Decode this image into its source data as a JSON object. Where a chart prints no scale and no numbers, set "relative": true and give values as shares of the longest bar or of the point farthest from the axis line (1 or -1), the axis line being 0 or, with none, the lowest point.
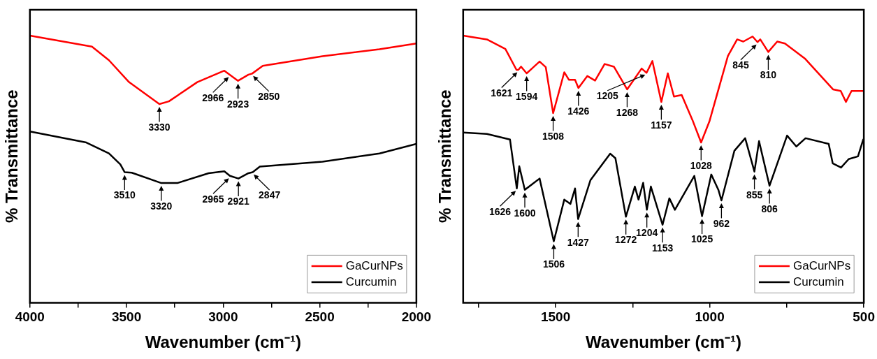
{
  "chart_data": [
    {
      "type": "line",
      "xlabel": "Wavenumber (cm⁻¹)",
      "ylabel": "% Transmittance",
      "relative": true,
      "xlim": [
        4000,
        2000
      ],
      "xticks": [
        4000,
        {
          "value": 3750,
          "label": null
        },
        3500,
        {
          "value": 3250,
          "label": null
        },
        3000,
        {
          "value": 2750,
          "label": null
        },
        2500,
        {
          "value": 2250,
          "label": null
        },
        2000
      ],
      "grid": false,
      "legend": "bottom right",
      "marker": "none",
      "line_style": "solid",
      "series": [
        {
          "name": "GaCurNPs",
          "color": "#ff0000",
          "x": [
            4000,
            3679,
            3591,
            3487,
            3330,
            3281,
            3134,
            2994,
            2966,
            2923,
            2869,
            2850,
            2795,
            2486,
            2191,
            2000
          ],
          "values": [
            1.0,
            0.959,
            0.908,
            0.826,
            0.744,
            0.754,
            0.826,
            0.869,
            0.854,
            0.831,
            0.854,
            0.858,
            0.887,
            0.923,
            0.949,
            0.971
          ]
        },
        {
          "name": "Curcumin",
          "color": "#000000",
          "x": [
            4000,
            3708,
            3591,
            3532,
            3510,
            3473,
            3320,
            3237,
            3075,
            2994,
            2965,
            2921,
            2869,
            2847,
            2810,
            2486,
            2191,
            2000
          ],
          "values": [
            0.641,
            0.6,
            0.559,
            0.518,
            0.489,
            0.487,
            0.448,
            0.448,
            0.485,
            0.492,
            0.475,
            0.465,
            0.485,
            0.489,
            0.51,
            0.528,
            0.559,
            0.595
          ]
        }
      ],
      "annotations": [
        {
          "text": "3330",
          "x": 3330,
          "y": 0.744
        },
        {
          "text": "2966",
          "x": 2966,
          "y": 0.854
        },
        {
          "text": "2923",
          "x": 2923,
          "y": 0.831
        },
        {
          "text": "2850",
          "x": 2850,
          "y": 0.858
        },
        {
          "text": "3510",
          "x": 3510,
          "y": 0.489
        },
        {
          "text": "3320",
          "x": 3320,
          "y": 0.448
        },
        {
          "text": "2965",
          "x": 2965,
          "y": 0.475
        },
        {
          "text": "2921",
          "x": 2921,
          "y": 0.465
        },
        {
          "text": "2847",
          "x": 2847,
          "y": 0.489
        }
      ]
    },
    {
      "type": "line",
      "xlabel": "Wavenumber (cm⁻¹)",
      "ylabel": "% Transmittance",
      "relative": true,
      "xlim": [
        1800,
        500
      ],
      "xticks": [
        {
          "value": 1750,
          "label": null
        },
        1500,
        {
          "value": 1250,
          "label": null
        },
        1000,
        {
          "value": 750,
          "label": null
        },
        500
      ],
      "grid": false,
      "legend": "bottom right",
      "marker": "none",
      "line_style": "solid",
      "series": [
        {
          "name": "GaCurNPs",
          "color": "#ff0000",
          "x": [
            1800,
            1723,
            1663,
            1627,
            1621,
            1612,
            1594,
            1552,
            1532,
            1508,
            1487,
            1472,
            1457,
            1437,
            1426,
            1397,
            1372,
            1341,
            1311,
            1268,
            1221,
            1205,
            1186,
            1157,
            1136,
            1116,
            1091,
            1056,
            1028,
            1001,
            941,
            911,
            891,
            861,
            845,
            836,
            810,
            781,
            756,
            690,
            600,
            575,
            558,
            540,
            502
          ],
          "values": [
            1.0,
            0.986,
            0.95,
            0.872,
            0.872,
            0.884,
            0.859,
            0.903,
            0.882,
            0.71,
            0.799,
            0.863,
            0.835,
            0.835,
            0.804,
            0.849,
            0.832,
            0.894,
            0.884,
            0.799,
            0.877,
            0.861,
            0.905,
            0.752,
            0.859,
            0.772,
            0.778,
            0.684,
            0.6,
            0.679,
            0.924,
            0.986,
            0.978,
            0.997,
            0.976,
            0.986,
            0.939,
            0.978,
            0.971,
            0.913,
            0.799,
            0.793,
            0.752,
            0.793,
            0.793
          ]
        },
        {
          "name": "Curcumin",
          "color": "#000000",
          "x": [
            1800,
            1723,
            1648,
            1626,
            1618,
            1600,
            1552,
            1506,
            1472,
            1452,
            1437,
            1427,
            1387,
            1323,
            1306,
            1272,
            1243,
            1231,
            1216,
            1204,
            1191,
            1153,
            1131,
            1113,
            1050,
            1025,
            995,
            972,
            962,
            920,
            885,
            855,
            840,
            806,
            749,
            719,
            689,
            614,
            601,
            574,
            549,
            519,
            502
          ],
          "values": [
            0.637,
            0.632,
            0.611,
            0.428,
            0.511,
            0.423,
            0.465,
            0.23,
            0.386,
            0.37,
            0.428,
            0.313,
            0.459,
            0.558,
            0.541,
            0.322,
            0.435,
            0.386,
            0.449,
            0.348,
            0.435,
            0.292,
            0.391,
            0.348,
            0.475,
            0.324,
            0.48,
            0.423,
            0.383,
            0.569,
            0.616,
            0.491,
            0.605,
            0.438,
            0.626,
            0.585,
            0.616,
            0.595,
            0.522,
            0.506,
            0.538,
            0.548,
            0.611
          ]
        }
      ],
      "annotations": [
        {
          "text": "1621",
          "x": 1621,
          "y": 0.872
        },
        {
          "text": "1594",
          "x": 1594,
          "y": 0.859
        },
        {
          "text": "1508",
          "x": 1508,
          "y": 0.71
        },
        {
          "text": "1426",
          "x": 1426,
          "y": 0.804
        },
        {
          "text": "1268",
          "x": 1268,
          "y": 0.799
        },
        {
          "text": "1205",
          "x": 1205,
          "y": 0.861
        },
        {
          "text": "1157",
          "x": 1157,
          "y": 0.752
        },
        {
          "text": "1028",
          "x": 1028,
          "y": 0.6
        },
        {
          "text": "845",
          "x": 845,
          "y": 0.976
        },
        {
          "text": "810",
          "x": 810,
          "y": 0.939
        },
        {
          "text": "1626",
          "x": 1626,
          "y": 0.428
        },
        {
          "text": "1600",
          "x": 1600,
          "y": 0.423
        },
        {
          "text": "1506",
          "x": 1506,
          "y": 0.23
        },
        {
          "text": "1427",
          "x": 1427,
          "y": 0.313
        },
        {
          "text": "1272",
          "x": 1272,
          "y": 0.322
        },
        {
          "text": "1204",
          "x": 1204,
          "y": 0.348
        },
        {
          "text": "1153",
          "x": 1153,
          "y": 0.292
        },
        {
          "text": "1025",
          "x": 1025,
          "y": 0.324
        },
        {
          "text": "962",
          "x": 962,
          "y": 0.383
        },
        {
          "text": "855",
          "x": 855,
          "y": 0.491
        },
        {
          "text": "806",
          "x": 806,
          "y": 0.438
        }
      ]
    }
  ]
}
